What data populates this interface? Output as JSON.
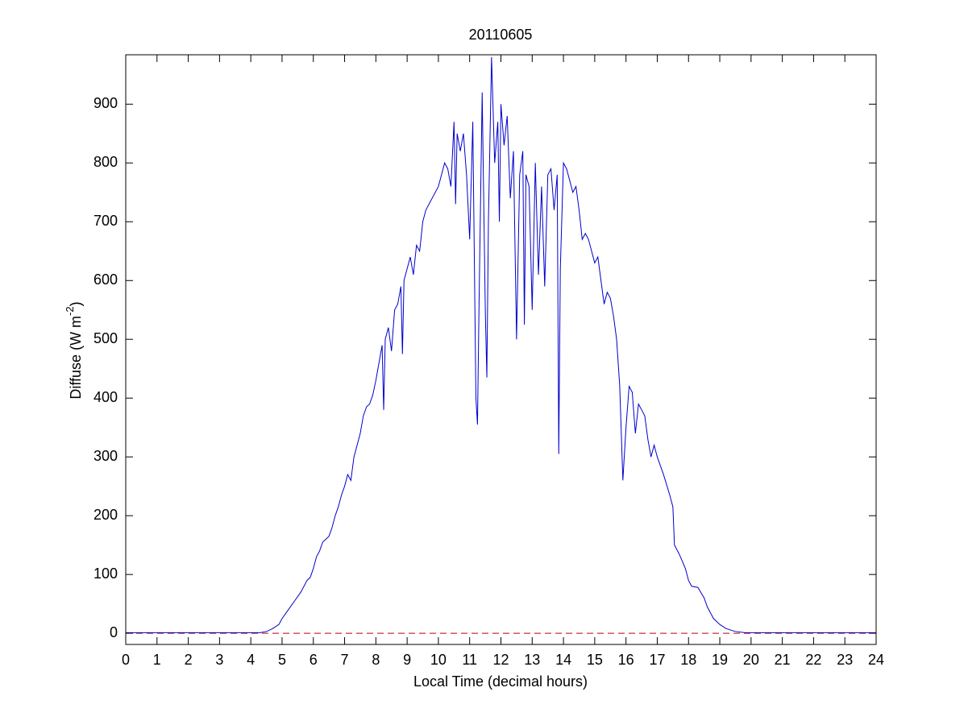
{
  "chart_data": {
    "type": "line",
    "title": "20110605",
    "xlabel": "Local Time (decimal hours)",
    "ylabel": "Diffuse (W m",
    "ylabel_sup": "-2",
    "ylabel_end": ")",
    "x": [
      0,
      4.3,
      4.5,
      4.7,
      4.9,
      5.0,
      5.2,
      5.4,
      5.6,
      5.8,
      5.9,
      6.0,
      6.1,
      6.2,
      6.3,
      6.5,
      6.6,
      6.7,
      6.8,
      6.9,
      7.0,
      7.1,
      7.2,
      7.3,
      7.4,
      7.5,
      7.6,
      7.7,
      7.8,
      7.9,
      8.0,
      8.1,
      8.2,
      8.25,
      8.3,
      8.4,
      8.5,
      8.6,
      8.7,
      8.8,
      8.85,
      8.9,
      9.0,
      9.1,
      9.2,
      9.3,
      9.4,
      9.5,
      9.6,
      9.8,
      10.0,
      10.1,
      10.2,
      10.3,
      10.4,
      10.5,
      10.55,
      10.6,
      10.7,
      10.8,
      10.9,
      11.0,
      11.1,
      11.2,
      11.25,
      11.3,
      11.4,
      11.5,
      11.55,
      11.6,
      11.7,
      11.8,
      11.9,
      11.95,
      12.0,
      12.1,
      12.2,
      12.3,
      12.4,
      12.5,
      12.6,
      12.7,
      12.75,
      12.8,
      12.9,
      13.0,
      13.1,
      13.2,
      13.3,
      13.4,
      13.5,
      13.6,
      13.7,
      13.8,
      13.85,
      13.9,
      14.0,
      14.1,
      14.2,
      14.3,
      14.4,
      14.5,
      14.6,
      14.7,
      14.8,
      14.9,
      15.0,
      15.1,
      15.2,
      15.3,
      15.4,
      15.5,
      15.6,
      15.7,
      15.8,
      15.9,
      16.0,
      16.1,
      16.2,
      16.3,
      16.4,
      16.5,
      16.6,
      16.7,
      16.8,
      16.9,
      17.0,
      17.2,
      17.4,
      17.5,
      17.55,
      17.7,
      17.9,
      18.0,
      18.1,
      18.3,
      18.5,
      18.6,
      18.8,
      19.0,
      19.2,
      19.5,
      19.8,
      24
    ],
    "series": [
      {
        "color": "#0000cc",
        "values": [
          1,
          1,
          3,
          8,
          15,
          25,
          40,
          55,
          70,
          90,
          95,
          110,
          130,
          140,
          155,
          165,
          180,
          200,
          215,
          235,
          250,
          270,
          260,
          300,
          320,
          340,
          370,
          385,
          390,
          405,
          430,
          460,
          490,
          380,
          500,
          520,
          480,
          550,
          560,
          590,
          475,
          600,
          620,
          640,
          610,
          660,
          650,
          700,
          720,
          740,
          760,
          780,
          800,
          790,
          760,
          870,
          730,
          850,
          820,
          850,
          780,
          670,
          870,
          400,
          355,
          560,
          920,
          550,
          435,
          700,
          980,
          800,
          870,
          700,
          900,
          830,
          880,
          740,
          820,
          500,
          780,
          820,
          525,
          780,
          760,
          550,
          800,
          610,
          760,
          590,
          780,
          790,
          720,
          780,
          305,
          620,
          800,
          790,
          770,
          750,
          760,
          720,
          670,
          680,
          670,
          650,
          630,
          640,
          600,
          560,
          580,
          570,
          540,
          500,
          420,
          260,
          350,
          420,
          410,
          340,
          390,
          380,
          370,
          330,
          300,
          320,
          300,
          270,
          235,
          215,
          150,
          135,
          110,
          90,
          80,
          78,
          60,
          45,
          25,
          15,
          8,
          3,
          1,
          1
        ]
      }
    ],
    "reference_line": {
      "value": 0,
      "color": "#c00000",
      "style": "dashed"
    },
    "xlim": [
      0,
      24
    ],
    "xticks": [
      0,
      1,
      2,
      3,
      4,
      5,
      6,
      7,
      8,
      9,
      10,
      11,
      12,
      13,
      14,
      15,
      16,
      17,
      18,
      19,
      20,
      21,
      22,
      23,
      24
    ],
    "ylim": [
      -19,
      984
    ],
    "yticks": [
      0,
      100,
      200,
      300,
      400,
      500,
      600,
      700,
      800,
      900
    ],
    "grid": false
  }
}
